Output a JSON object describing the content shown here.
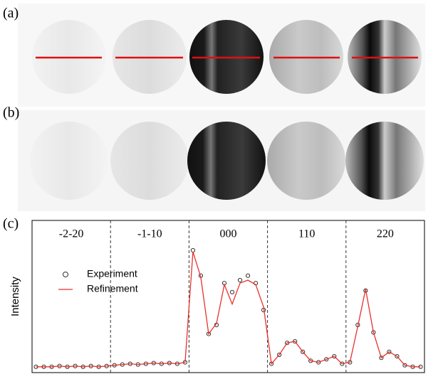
{
  "panel_labels": [
    "(a)",
    "(b)",
    "(c)"
  ],
  "chart_data": {
    "type": "line",
    "y_label": "Intensity",
    "segments": [
      "-2-20",
      "-1-10",
      "000",
      "110",
      "220"
    ],
    "xlim": [
      0,
      50
    ],
    "ylim": [
      0,
      100
    ],
    "legend": "upper left",
    "x": [
      0.5,
      1.5,
      2.5,
      3.5,
      4.5,
      5.5,
      6.5,
      7.5,
      8.5,
      9.5,
      10.5,
      11.5,
      12.5,
      13.5,
      14.5,
      15.5,
      16.5,
      17.5,
      18.5,
      19.5,
      20.5,
      21.5,
      22.5,
      23.5,
      24.5,
      25.5,
      26.5,
      27.5,
      28.5,
      29.5,
      30.5,
      31.5,
      32.5,
      33.5,
      34.5,
      35.5,
      36.5,
      37.5,
      38.5,
      39.5,
      40.5,
      41.5,
      42.5,
      43.5,
      44.5,
      45.5,
      46.5,
      47.5,
      48.5,
      49.5
    ],
    "series": [
      {
        "name": "Experiment",
        "color": "#333333",
        "marker": "circle",
        "values": [
          2,
          2,
          2,
          2.5,
          2,
          2.5,
          2,
          2.5,
          2,
          2.5,
          3,
          3.5,
          4,
          3.5,
          4,
          4.5,
          4,
          4.5,
          4,
          5,
          80,
          63,
          24,
          30,
          58,
          52,
          60,
          63,
          58,
          40,
          4,
          10,
          18,
          19,
          12,
          6,
          5,
          7,
          9,
          4,
          5,
          30,
          53,
          25,
          8,
          12,
          9,
          3,
          2,
          2
        ]
      },
      {
        "name": "Refinement",
        "color": "#e8312a",
        "marker": "line",
        "values": [
          2,
          2,
          2,
          2.5,
          2,
          2.5,
          2,
          2.5,
          2,
          2.5,
          3,
          3.5,
          4,
          3.5,
          4,
          4.5,
          4,
          4.5,
          4,
          5,
          79,
          62,
          24,
          31,
          57,
          44,
          58,
          60,
          57,
          42,
          4,
          10,
          18,
          19,
          12,
          6,
          5,
          7,
          9,
          4,
          5,
          29,
          54,
          25,
          8,
          12,
          9,
          3,
          2,
          2
        ]
      }
    ]
  }
}
